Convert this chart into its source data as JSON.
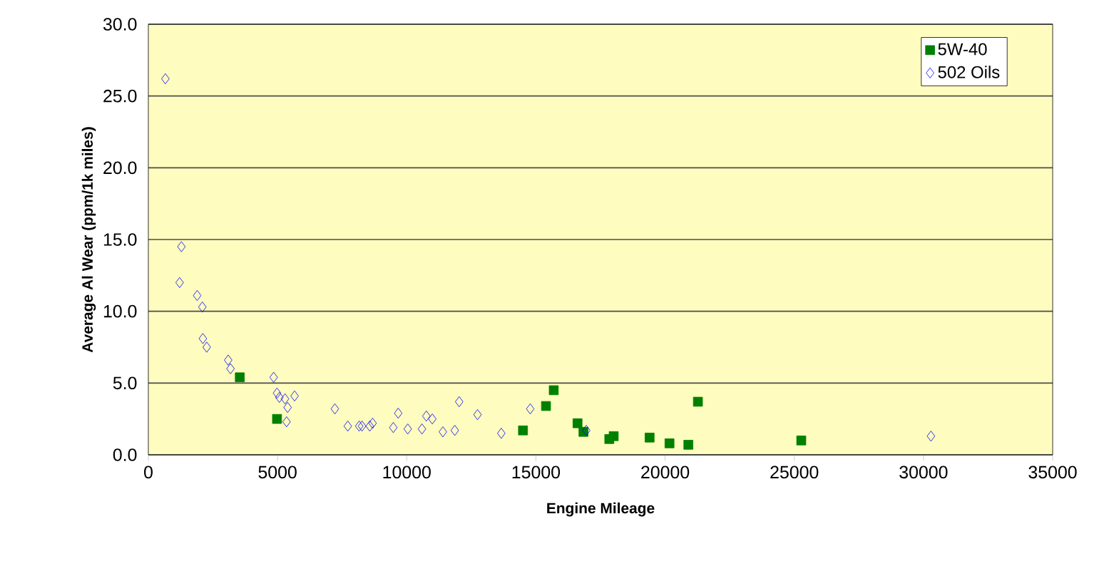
{
  "chart_data": {
    "type": "scatter",
    "xlabel": "Engine Mileage",
    "ylabel": "Average Al Wear (ppm/1k miles)",
    "xlim": [
      0,
      35000
    ],
    "xticks": [
      0,
      5000,
      10000,
      15000,
      20000,
      25000,
      30000,
      35000
    ],
    "ylim": [
      0,
      30
    ],
    "yticks": [
      {
        "value": 0,
        "label": "0.0"
      },
      {
        "value": 5,
        "label": "5.0"
      },
      {
        "value": 10,
        "label": "10.0"
      },
      {
        "value": 15,
        "label": "15.0"
      },
      {
        "value": 20,
        "label": "20.0"
      },
      {
        "value": 25,
        "label": "25.0"
      },
      {
        "value": 30,
        "label": "30.0"
      }
    ],
    "grid": "y",
    "legend": "top right",
    "series": [
      {
        "name": "5W-40",
        "color": "#008000",
        "marker": "square",
        "x": [
          3540,
          4980,
          14500,
          15390,
          15690,
          16610,
          16840,
          17840,
          18010,
          19400,
          20170,
          20900,
          21270,
          25270
        ],
        "values": [
          5.4,
          2.5,
          1.7,
          3.4,
          4.5,
          2.2,
          1.6,
          1.1,
          1.3,
          1.2,
          0.8,
          0.7,
          3.7,
          1.0
        ]
      },
      {
        "name": "502 Oils",
        "color": "#0000ff",
        "marker": "diamond",
        "x": [
          660,
          1280,
          1210,
          1890,
          2090,
          2110,
          2260,
          3090,
          3180,
          4850,
          4980,
          5070,
          5290,
          5660,
          5390,
          5350,
          7220,
          7720,
          8160,
          8270,
          8570,
          8680,
          9480,
          9670,
          10040,
          10590,
          10760,
          10990,
          11400,
          11860,
          12030,
          12740,
          13660,
          14780,
          16950,
          30290
        ],
        "values": [
          26.2,
          14.5,
          12.0,
          11.1,
          10.3,
          8.1,
          7.5,
          6.6,
          6.0,
          5.4,
          4.3,
          4.0,
          3.9,
          4.1,
          3.3,
          2.3,
          3.2,
          2.0,
          2.0,
          2.0,
          2.0,
          2.2,
          1.9,
          2.9,
          1.8,
          1.8,
          2.7,
          2.5,
          1.6,
          1.7,
          3.7,
          2.8,
          1.5,
          3.2,
          1.7,
          1.3
        ]
      }
    ]
  }
}
